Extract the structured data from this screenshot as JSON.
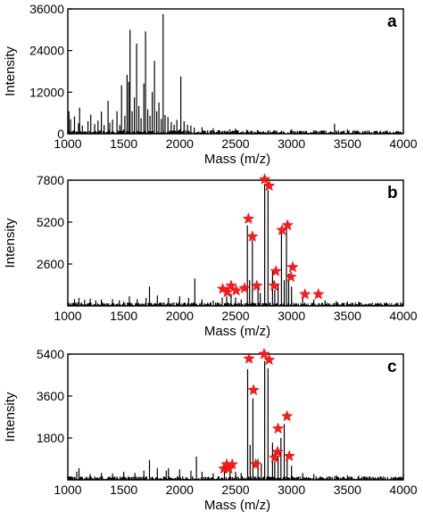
{
  "chart_data": [
    {
      "type": "line",
      "panel_label": "a",
      "xlabel": "Mass (m/z)",
      "ylabel": "Intensity",
      "xlim": [
        1000,
        4000
      ],
      "ylim": [
        0,
        36000
      ],
      "xticks": [
        1000,
        1500,
        2000,
        2500,
        3000,
        3500,
        4000
      ],
      "yticks": [
        0,
        12000,
        24000,
        36000
      ],
      "grid": false,
      "baseline": 250,
      "peaks": [
        [
          1010,
          6500
        ],
        [
          1025,
          4200
        ],
        [
          1060,
          5000
        ],
        [
          1095,
          3000
        ],
        [
          1105,
          7500
        ],
        [
          1130,
          2400
        ],
        [
          1180,
          3600
        ],
        [
          1205,
          5500
        ],
        [
          1240,
          2800
        ],
        [
          1270,
          3800
        ],
        [
          1300,
          6400
        ],
        [
          1325,
          2500
        ],
        [
          1360,
          9500
        ],
        [
          1375,
          3200
        ],
        [
          1400,
          4100
        ],
        [
          1440,
          6500
        ],
        [
          1465,
          2500
        ],
        [
          1480,
          14000
        ],
        [
          1510,
          5200
        ],
        [
          1530,
          17000
        ],
        [
          1545,
          15000
        ],
        [
          1556,
          30000
        ],
        [
          1575,
          6500
        ],
        [
          1595,
          10500
        ],
        [
          1615,
          26000
        ],
        [
          1635,
          8000
        ],
        [
          1655,
          4500
        ],
        [
          1680,
          14500
        ],
        [
          1695,
          29500
        ],
        [
          1715,
          7000
        ],
        [
          1735,
          5200
        ],
        [
          1755,
          12000
        ],
        [
          1775,
          21000
        ],
        [
          1795,
          6500
        ],
        [
          1815,
          9000
        ],
        [
          1835,
          4300
        ],
        [
          1852,
          34500
        ],
        [
          1870,
          5400
        ],
        [
          1895,
          4800
        ],
        [
          1925,
          3400
        ],
        [
          1950,
          2600
        ],
        [
          1975,
          4000
        ],
        [
          2010,
          16500
        ],
        [
          2040,
          3600
        ],
        [
          2070,
          2600
        ],
        [
          2100,
          2400
        ],
        [
          2130,
          1800
        ],
        [
          2200,
          1900
        ],
        [
          2300,
          1600
        ],
        [
          2450,
          1300
        ],
        [
          2500,
          1500
        ],
        [
          2600,
          1200
        ],
        [
          2700,
          1100
        ],
        [
          2850,
          1000
        ],
        [
          3000,
          900
        ],
        [
          3200,
          900
        ],
        [
          3385,
          2900
        ],
        [
          3600,
          700
        ],
        [
          3800,
          600
        ]
      ],
      "markers": []
    },
    {
      "type": "line",
      "panel_label": "b",
      "xlabel": "Mass (m/z)",
      "ylabel": "Intensity",
      "xlim": [
        1000,
        4000
      ],
      "ylim": [
        0,
        7800
      ],
      "xticks": [
        1000,
        1500,
        2000,
        2500,
        3000,
        3500,
        4000
      ],
      "yticks": [
        2600,
        5200,
        7800
      ],
      "grid": false,
      "baseline": 80,
      "peaks": [
        [
          1060,
          420
        ],
        [
          1100,
          500
        ],
        [
          1150,
          380
        ],
        [
          1200,
          450
        ],
        [
          1250,
          350
        ],
        [
          1300,
          400
        ],
        [
          1400,
          420
        ],
        [
          1460,
          350
        ],
        [
          1550,
          600
        ],
        [
          1620,
          420
        ],
        [
          1700,
          500
        ],
        [
          1730,
          1200
        ],
        [
          1800,
          650
        ],
        [
          1900,
          500
        ],
        [
          2000,
          600
        ],
        [
          2080,
          500
        ],
        [
          2135,
          1700
        ],
        [
          2200,
          400
        ],
        [
          2300,
          350
        ],
        [
          2380,
          520
        ],
        [
          2420,
          600
        ],
        [
          2460,
          750
        ],
        [
          2500,
          520
        ],
        [
          2550,
          400
        ],
        [
          2605,
          5000
        ],
        [
          2625,
          1600
        ],
        [
          2650,
          4100
        ],
        [
          2700,
          1400
        ],
        [
          2720,
          800
        ],
        [
          2760,
          7600
        ],
        [
          2790,
          7200
        ],
        [
          2830,
          2200
        ],
        [
          2850,
          1000
        ],
        [
          2880,
          1400
        ],
        [
          2910,
          4700
        ],
        [
          2935,
          1600
        ],
        [
          2955,
          4900
        ],
        [
          2975,
          2000
        ],
        [
          3000,
          1200
        ],
        [
          3100,
          500
        ],
        [
          3200,
          400
        ],
        [
          3300,
          350
        ],
        [
          3400,
          300
        ],
        [
          3600,
          250
        ],
        [
          3800,
          200
        ]
      ],
      "markers": [
        [
          2385,
          1050
        ],
        [
          2425,
          850
        ],
        [
          2460,
          1250
        ],
        [
          2505,
          950
        ],
        [
          2580,
          1100
        ],
        [
          2615,
          5400
        ],
        [
          2650,
          4300
        ],
        [
          2690,
          1250
        ],
        [
          2760,
          7850
        ],
        [
          2800,
          7450
        ],
        [
          2845,
          1250
        ],
        [
          2860,
          2150
        ],
        [
          2915,
          4700
        ],
        [
          2965,
          5000
        ],
        [
          2995,
          1800
        ],
        [
          3010,
          2400
        ],
        [
          3120,
          720
        ],
        [
          3240,
          720
        ]
      ]
    },
    {
      "type": "line",
      "panel_label": "c",
      "xlabel": "Mass (m/z)",
      "ylabel": "Intensity",
      "xlim": [
        1000,
        4000
      ],
      "ylim": [
        0,
        5400
      ],
      "xticks": [
        1000,
        1500,
        2000,
        2500,
        3000,
        3500,
        4000
      ],
      "yticks": [
        1800,
        3600,
        5400
      ],
      "grid": false,
      "baseline": 60,
      "peaks": [
        [
          1080,
          350
        ],
        [
          1100,
          500
        ],
        [
          1200,
          250
        ],
        [
          1300,
          300
        ],
        [
          1400,
          280
        ],
        [
          1500,
          350
        ],
        [
          1600,
          300
        ],
        [
          1680,
          400
        ],
        [
          1730,
          850
        ],
        [
          1800,
          500
        ],
        [
          1880,
          400
        ],
        [
          1900,
          500
        ],
        [
          2000,
          450
        ],
        [
          2100,
          400
        ],
        [
          2150,
          1000
        ],
        [
          2200,
          350
        ],
        [
          2300,
          280
        ],
        [
          2400,
          400
        ],
        [
          2450,
          500
        ],
        [
          2500,
          350
        ],
        [
          2550,
          300
        ],
        [
          2608,
          4750
        ],
        [
          2630,
          1500
        ],
        [
          2655,
          3500
        ],
        [
          2700,
          900
        ],
        [
          2730,
          700
        ],
        [
          2760,
          5100
        ],
        [
          2790,
          4800
        ],
        [
          2830,
          1600
        ],
        [
          2850,
          800
        ],
        [
          2880,
          1000
        ],
        [
          2905,
          1800
        ],
        [
          2935,
          2400
        ],
        [
          2960,
          1100
        ],
        [
          3000,
          600
        ],
        [
          3100,
          300
        ],
        [
          3200,
          250
        ],
        [
          3400,
          200
        ],
        [
          3600,
          180
        ],
        [
          3800,
          150
        ]
      ],
      "markers": [
        [
          2395,
          480
        ],
        [
          2420,
          660
        ],
        [
          2440,
          480
        ],
        [
          2470,
          660
        ],
        [
          2620,
          5200
        ],
        [
          2660,
          3850
        ],
        [
          2680,
          660
        ],
        [
          2755,
          5400
        ],
        [
          2800,
          5150
        ],
        [
          2850,
          950
        ],
        [
          2875,
          1200
        ],
        [
          2880,
          2200
        ],
        [
          2960,
          2730
        ],
        [
          2980,
          1020
        ]
      ]
    }
  ]
}
